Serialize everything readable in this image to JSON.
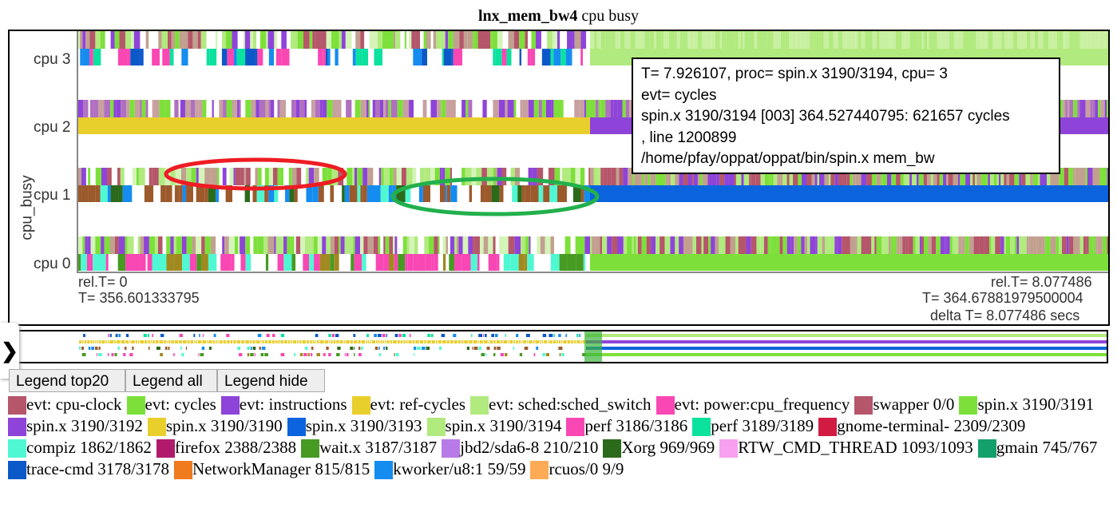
{
  "title": {
    "bold": "lnx_mem_bw4",
    "rest": " cpu busy"
  },
  "chart_data": {
    "type": "timeline",
    "title": "lnx_mem_bw4 cpu busy",
    "ylabel": "cpu_busy",
    "categories": [
      "cpu 3",
      "cpu 2",
      "cpu 1",
      "cpu 0"
    ],
    "x_start": {
      "rel": "rel.T= 0",
      "abs": "T= 356.601333795"
    },
    "x_end": {
      "rel": "rel.T= 8.077486",
      "abs": "T= 364.67881979500004",
      "delta": "delta T= 8.077486  secs"
    },
    "rows": [
      {
        "cpu": "cpu 3",
        "before": "mixed: perf 3186/3186, trace-cmd, perf 3189/3189, kworker",
        "after": "spin.x 3190/3194"
      },
      {
        "cpu": "cpu 2",
        "before": "spin.x 3190/3190",
        "after": "spin.x 3190/3192"
      },
      {
        "cpu": "cpu 1",
        "before": "mixed: swapper, compiz, Xorg",
        "after": "spin.x 3190/3193"
      },
      {
        "cpu": "cpu 0",
        "before": "mixed: perf 3186/3186, compiz, wait.x",
        "after": "spin.x 3190/3191"
      }
    ],
    "grid": false
  },
  "tooltip": [
    "T= 7.926107, proc= spin.x 3190/3194, cpu= 3",
    "evt= cycles",
    "spin.x 3190/3194 [003] 364.527440795: 621657 cycles",
    ", line 1200899",
    "/home/pfay/oppat/oppat/bin/spin.x mem_bw"
  ],
  "annotations": [
    {
      "color": "#ee1c24",
      "shape": "ellipse"
    },
    {
      "color": "#22b04c",
      "shape": "ellipse"
    }
  ],
  "buttons": [
    "Legend top20",
    "Legend all",
    "Legend hide"
  ],
  "tab_icon": "chevron-right-icon",
  "legend": [
    {
      "label": "evt: cpu-clock",
      "color": "#b5566a"
    },
    {
      "label": "evt: cycles",
      "color": "#7de03a"
    },
    {
      "label": "evt: instructions",
      "color": "#8e44d8"
    },
    {
      "label": "evt: ref-cycles",
      "color": "#e9cf2c"
    },
    {
      "label": "evt: sched:sched_switch",
      "color": "#b1ea7e"
    },
    {
      "label": "evt: power:cpu_frequency",
      "color": "#f947b4"
    },
    {
      "label": "swapper 0/0",
      "color": "#b5566a"
    },
    {
      "label": "spin.x 3190/3191",
      "color": "#7de03a"
    },
    {
      "label": "spin.x 3190/3192",
      "color": "#8e44d8"
    },
    {
      "label": "spin.x 3190/3190",
      "color": "#e9cf2c"
    },
    {
      "label": "spin.x 3190/3193",
      "color": "#0b63dd"
    },
    {
      "label": "spin.x 3190/3194",
      "color": "#b1ea7e"
    },
    {
      "label": "perf 3186/3186",
      "color": "#f947b4"
    },
    {
      "label": "perf 3189/3189",
      "color": "#0ae29e"
    },
    {
      "label": "gnome-terminal- 2309/2309",
      "color": "#d11b43"
    },
    {
      "label": "compiz 1862/1862",
      "color": "#4ff8d2"
    },
    {
      "label": "firefox 2388/2388",
      "color": "#b11a6a"
    },
    {
      "label": "wait.x 3187/3187",
      "color": "#479b22"
    },
    {
      "label": "jbd2/sda6-8 210/210",
      "color": "#b87ae6"
    },
    {
      "label": "Xorg 969/969",
      "color": "#2b6a1b"
    },
    {
      "label": "RTW_CMD_THREAD 1093/1093",
      "color": "#f7a0f0"
    },
    {
      "label": "gmain 745/767",
      "color": "#14a06a"
    },
    {
      "label": "trace-cmd 3178/3178",
      "color": "#0b58c8"
    },
    {
      "label": "NetworkManager 815/815",
      "color": "#f07a1e"
    },
    {
      "label": "kworker/u8:1 59/59",
      "color": "#158cf0"
    },
    {
      "label": "rcuos/0 9/9",
      "color": "#fdab56"
    }
  ]
}
